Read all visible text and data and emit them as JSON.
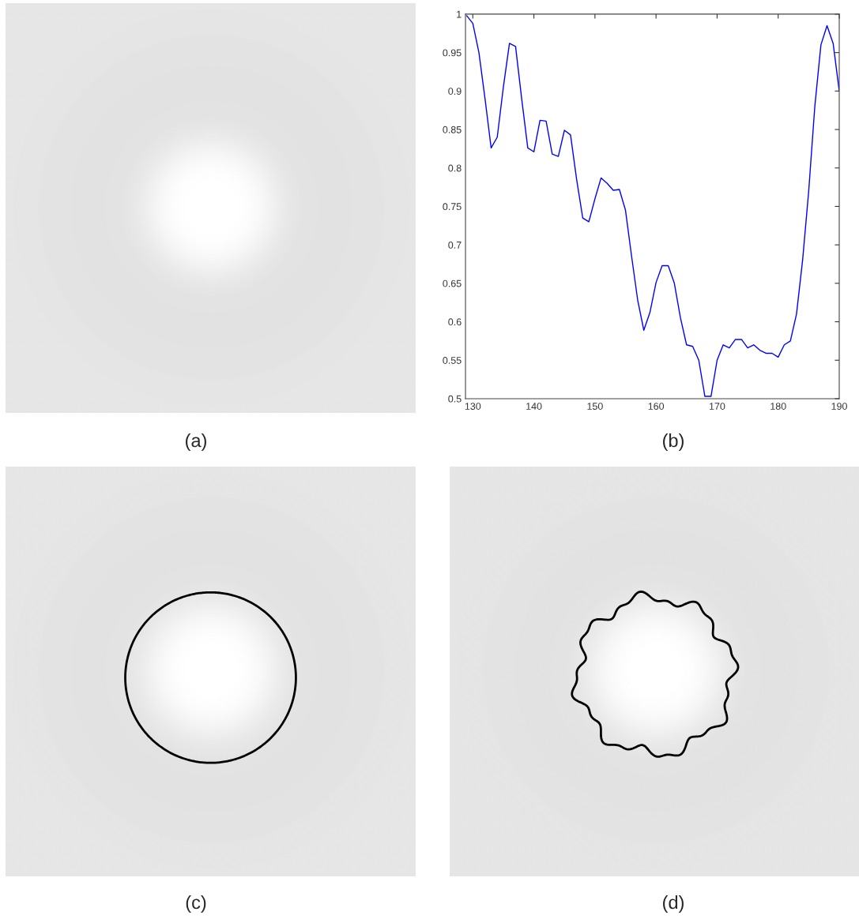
{
  "chart_data": [
    {
      "type": "other",
      "annotations": [
        "(a)"
      ]
    },
    {
      "type": "line",
      "annotations": [
        "(b)"
      ],
      "x": [
        129,
        130,
        131,
        132,
        133,
        134,
        135,
        136,
        137,
        138,
        139,
        140,
        141,
        142,
        143,
        144,
        145,
        146,
        147,
        148,
        149,
        150,
        151,
        152,
        153,
        154,
        155,
        156,
        157,
        158,
        159,
        160,
        161,
        162,
        163,
        164,
        165,
        166,
        167,
        168,
        169,
        170,
        171,
        172,
        173,
        174,
        175,
        176,
        177,
        178,
        179,
        180,
        181,
        182,
        183,
        184,
        185,
        186,
        187,
        188,
        189,
        190
      ],
      "series": [
        {
          "color": "#0000ff",
          "values": [
            0.998,
            0.988,
            0.95,
            0.89,
            0.826,
            0.84,
            0.905,
            0.962,
            0.958,
            0.89,
            0.826,
            0.821,
            0.862,
            0.861,
            0.818,
            0.815,
            0.849,
            0.843,
            0.785,
            0.735,
            0.73,
            0.76,
            0.787,
            0.78,
            0.771,
            0.772,
            0.745,
            0.685,
            0.628,
            0.589,
            0.612,
            0.651,
            0.673,
            0.673,
            0.65,
            0.605,
            0.57,
            0.568,
            0.55,
            0.503,
            0.503,
            0.55,
            0.57,
            0.566,
            0.577,
            0.577,
            0.566,
            0.57,
            0.563,
            0.559,
            0.559,
            0.554,
            0.57,
            0.575,
            0.61,
            0.68,
            0.77,
            0.88,
            0.96,
            0.985,
            0.962,
            0.9
          ]
        }
      ],
      "xlim": [
        128.8,
        190
      ],
      "ylim": [
        0.5,
        1
      ],
      "xticks": [
        130,
        140,
        150,
        160,
        170,
        180,
        190
      ],
      "yticks": [
        0.5,
        0.55,
        0.6,
        0.65,
        0.7,
        0.75,
        0.8,
        0.85,
        0.9,
        0.95,
        1
      ],
      "grid": false,
      "legend": false,
      "marker": "none",
      "line_style": "solid"
    },
    {
      "type": "other",
      "annotations": [
        "(c)"
      ]
    },
    {
      "type": "other",
      "annotations": [
        "(d)"
      ]
    }
  ]
}
